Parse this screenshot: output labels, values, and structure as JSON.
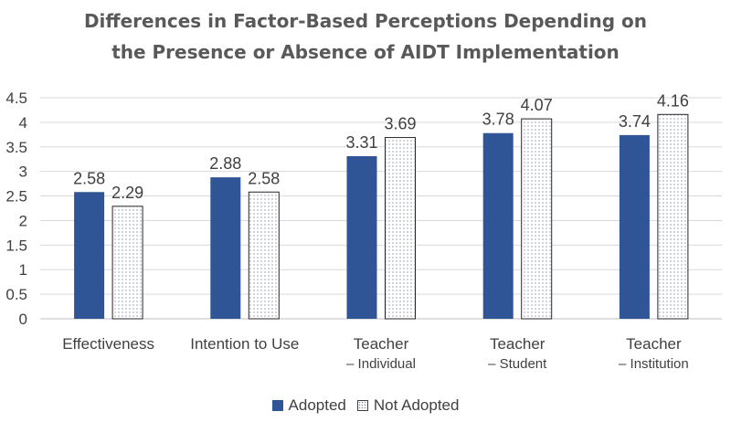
{
  "chart_data": {
    "type": "bar",
    "title_lines": [
      "Differences in Factor-Based Perceptions Depending on",
      "the Presence or Absence of AIDT Implementation"
    ],
    "categories": [
      [
        "Effectiveness"
      ],
      [
        "Intention to Use"
      ],
      [
        "Teacher",
        "– Individual"
      ],
      [
        "Teacher",
        "– Student"
      ],
      [
        "Teacher",
        "– Institution"
      ]
    ],
    "series": [
      {
        "name": "Adopted",
        "values": [
          2.58,
          2.88,
          3.31,
          3.78,
          3.74
        ],
        "labels": [
          "2.58",
          "2.88",
          "3.31",
          "3.78",
          "3.74"
        ],
        "color": "#2f5597"
      },
      {
        "name": "Not Adopted",
        "values": [
          2.29,
          2.58,
          3.69,
          4.07,
          4.16
        ],
        "labels": [
          "2.29",
          "2.58",
          "3.69",
          "4.07",
          "4.16"
        ],
        "color": "#ffffff",
        "pattern": "dots"
      }
    ],
    "yticks": [
      "0",
      "0.5",
      "1",
      "1.5",
      "2",
      "2.5",
      "3",
      "3.5",
      "4",
      "4.5"
    ],
    "ylim": [
      0,
      4.5
    ],
    "grid": true,
    "legend_position": "bottom"
  }
}
